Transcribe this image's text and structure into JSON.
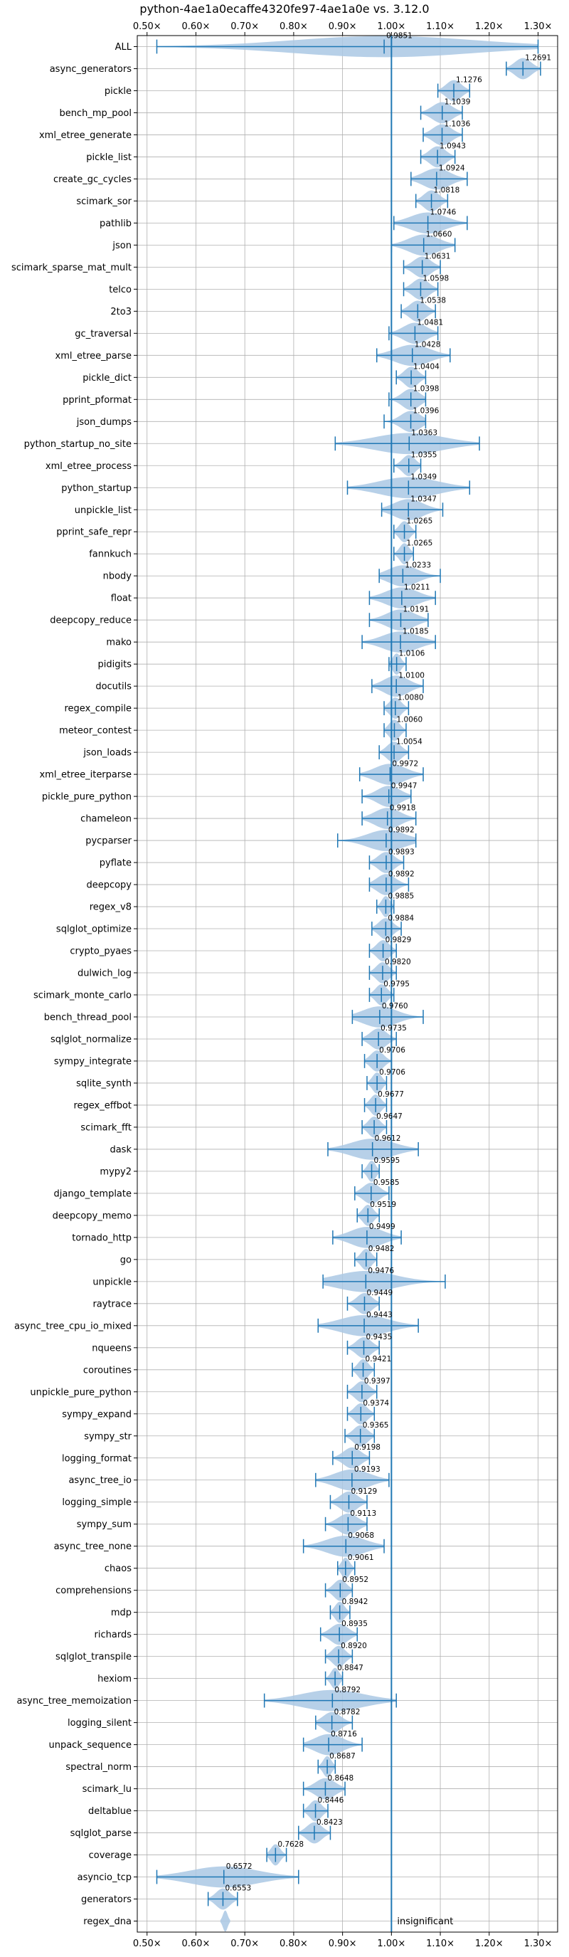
{
  "chart_data": {
    "type": "violin",
    "title": "python-4ae1a0ecaffe4320fe97-4ae1a0e vs. 3.12.0",
    "xlim": [
      0.48,
      1.34
    ],
    "xticks": [
      0.5,
      0.6,
      0.7,
      0.8,
      0.9,
      1.0,
      1.1,
      1.2,
      1.3
    ],
    "xtick_labels": [
      "0.50×",
      "0.60×",
      "0.70×",
      "0.80×",
      "0.90×",
      "1.00×",
      "1.10×",
      "1.20×",
      "1.30×"
    ],
    "grid": true,
    "reference_line": 1.0,
    "annotation": {
      "text": "insignificant",
      "benchmark": "regex_dna"
    },
    "benchmarks": [
      {
        "name": "ALL",
        "value": 0.9851,
        "value_label": "0.9851",
        "min": 0.52,
        "max": 1.3
      },
      {
        "name": "async_generators",
        "value": 1.2691,
        "value_label": "1.2691",
        "min": 1.235,
        "max": 1.305
      },
      {
        "name": "pickle",
        "value": 1.1276,
        "value_label": "1.1276",
        "min": 1.095,
        "max": 1.16
      },
      {
        "name": "bench_mp_pool",
        "value": 1.1039,
        "value_label": "1.1039",
        "min": 1.06,
        "max": 1.145
      },
      {
        "name": "xml_etree_generate",
        "value": 1.1036,
        "value_label": "1.1036",
        "min": 1.065,
        "max": 1.145
      },
      {
        "name": "pickle_list",
        "value": 1.0943,
        "value_label": "1.0943",
        "min": 1.06,
        "max": 1.13
      },
      {
        "name": "create_gc_cycles",
        "value": 1.0924,
        "value_label": "1.0924",
        "min": 1.04,
        "max": 1.155
      },
      {
        "name": "scimark_sor",
        "value": 1.0818,
        "value_label": "1.0818",
        "min": 1.05,
        "max": 1.115
      },
      {
        "name": "pathlib",
        "value": 1.0746,
        "value_label": "1.0746",
        "min": 1.005,
        "max": 1.155
      },
      {
        "name": "json",
        "value": 1.066,
        "value_label": "1.0660",
        "min": 1.0,
        "max": 1.13
      },
      {
        "name": "scimark_sparse_mat_mult",
        "value": 1.0631,
        "value_label": "1.0631",
        "min": 1.025,
        "max": 1.1
      },
      {
        "name": "telco",
        "value": 1.0598,
        "value_label": "1.0598",
        "min": 1.025,
        "max": 1.095
      },
      {
        "name": "2to3",
        "value": 1.0538,
        "value_label": "1.0538",
        "min": 1.02,
        "max": 1.09
      },
      {
        "name": "gc_traversal",
        "value": 1.0481,
        "value_label": "1.0481",
        "min": 0.995,
        "max": 1.095
      },
      {
        "name": "xml_etree_parse",
        "value": 1.0428,
        "value_label": "1.0428",
        "min": 0.97,
        "max": 1.12
      },
      {
        "name": "pickle_dict",
        "value": 1.0404,
        "value_label": "1.0404",
        "min": 1.01,
        "max": 1.07
      },
      {
        "name": "pprint_pformat",
        "value": 1.0398,
        "value_label": "1.0398",
        "min": 0.995,
        "max": 1.07
      },
      {
        "name": "json_dumps",
        "value": 1.0396,
        "value_label": "1.0396",
        "min": 0.985,
        "max": 1.07
      },
      {
        "name": "python_startup_no_site",
        "value": 1.0363,
        "value_label": "1.0363",
        "min": 0.885,
        "max": 1.18
      },
      {
        "name": "xml_etree_process",
        "value": 1.0355,
        "value_label": "1.0355",
        "min": 1.005,
        "max": 1.06
      },
      {
        "name": "python_startup",
        "value": 1.0349,
        "value_label": "1.0349",
        "min": 0.91,
        "max": 1.16
      },
      {
        "name": "unpickle_list",
        "value": 1.0347,
        "value_label": "1.0347",
        "min": 0.98,
        "max": 1.105
      },
      {
        "name": "pprint_safe_repr",
        "value": 1.0265,
        "value_label": "1.0265",
        "min": 1.005,
        "max": 1.05
      },
      {
        "name": "fannkuch",
        "value": 1.0265,
        "value_label": "1.0265",
        "min": 1.005,
        "max": 1.045
      },
      {
        "name": "nbody",
        "value": 1.0233,
        "value_label": "1.0233",
        "min": 0.975,
        "max": 1.1
      },
      {
        "name": "float",
        "value": 1.0211,
        "value_label": "1.0211",
        "min": 0.955,
        "max": 1.09
      },
      {
        "name": "deepcopy_reduce",
        "value": 1.0191,
        "value_label": "1.0191",
        "min": 0.955,
        "max": 1.075
      },
      {
        "name": "mako",
        "value": 1.0185,
        "value_label": "1.0185",
        "min": 0.94,
        "max": 1.09
      },
      {
        "name": "pidigits",
        "value": 1.0106,
        "value_label": "1.0106",
        "min": 0.995,
        "max": 1.03
      },
      {
        "name": "docutils",
        "value": 1.01,
        "value_label": "1.0100",
        "min": 0.96,
        "max": 1.065
      },
      {
        "name": "regex_compile",
        "value": 1.008,
        "value_label": "1.0080",
        "min": 0.985,
        "max": 1.035
      },
      {
        "name": "meteor_contest",
        "value": 1.006,
        "value_label": "1.0060",
        "min": 0.985,
        "max": 1.03
      },
      {
        "name": "json_loads",
        "value": 1.0054,
        "value_label": "1.0054",
        "min": 0.975,
        "max": 1.035
      },
      {
        "name": "xml_etree_iterparse",
        "value": 0.9972,
        "value_label": "0.9972",
        "min": 0.935,
        "max": 1.065
      },
      {
        "name": "pickle_pure_python",
        "value": 0.9947,
        "value_label": "0.9947",
        "min": 0.94,
        "max": 1.04
      },
      {
        "name": "chameleon",
        "value": 0.9918,
        "value_label": "0.9918",
        "min": 0.94,
        "max": 1.05
      },
      {
        "name": "pycparser",
        "value": 0.9892,
        "value_label": "0.9892",
        "min": 0.89,
        "max": 1.05
      },
      {
        "name": "pyflate",
        "value": 0.9893,
        "value_label": "0.9893",
        "min": 0.955,
        "max": 1.025
      },
      {
        "name": "deepcopy",
        "value": 0.9892,
        "value_label": "0.9892",
        "min": 0.955,
        "max": 1.035
      },
      {
        "name": "regex_v8",
        "value": 0.9885,
        "value_label": "0.9885",
        "min": 0.97,
        "max": 1.005
      },
      {
        "name": "sqlglot_optimize",
        "value": 0.9884,
        "value_label": "0.9884",
        "min": 0.96,
        "max": 1.02
      },
      {
        "name": "crypto_pyaes",
        "value": 0.9829,
        "value_label": "0.9829",
        "min": 0.955,
        "max": 1.01
      },
      {
        "name": "dulwich_log",
        "value": 0.982,
        "value_label": "0.9820",
        "min": 0.955,
        "max": 1.01
      },
      {
        "name": "scimark_monte_carlo",
        "value": 0.9795,
        "value_label": "0.9795",
        "min": 0.955,
        "max": 1.005
      },
      {
        "name": "bench_thread_pool",
        "value": 0.976,
        "value_label": "0.9760",
        "min": 0.92,
        "max": 1.065
      },
      {
        "name": "sqlglot_normalize",
        "value": 0.9735,
        "value_label": "0.9735",
        "min": 0.94,
        "max": 1.01
      },
      {
        "name": "sympy_integrate",
        "value": 0.9706,
        "value_label": "0.9706",
        "min": 0.945,
        "max": 1.0
      },
      {
        "name": "sqlite_synth",
        "value": 0.9706,
        "value_label": "0.9706",
        "min": 0.95,
        "max": 0.99
      },
      {
        "name": "regex_effbot",
        "value": 0.9677,
        "value_label": "0.9677",
        "min": 0.945,
        "max": 0.99
      },
      {
        "name": "scimark_fft",
        "value": 0.9647,
        "value_label": "0.9647",
        "min": 0.94,
        "max": 0.99
      },
      {
        "name": "dask",
        "value": 0.9612,
        "value_label": "0.9612",
        "min": 0.87,
        "max": 1.055
      },
      {
        "name": "mypy2",
        "value": 0.9595,
        "value_label": "0.9595",
        "min": 0.94,
        "max": 0.975
      },
      {
        "name": "django_template",
        "value": 0.9585,
        "value_label": "0.9585",
        "min": 0.925,
        "max": 0.995
      },
      {
        "name": "deepcopy_memo",
        "value": 0.9519,
        "value_label": "0.9519",
        "min": 0.93,
        "max": 0.975
      },
      {
        "name": "tornado_http",
        "value": 0.9499,
        "value_label": "0.9499",
        "min": 0.88,
        "max": 1.02
      },
      {
        "name": "go",
        "value": 0.9482,
        "value_label": "0.9482",
        "min": 0.925,
        "max": 0.97
      },
      {
        "name": "unpickle",
        "value": 0.9476,
        "value_label": "0.9476",
        "min": 0.86,
        "max": 1.11
      },
      {
        "name": "raytrace",
        "value": 0.9449,
        "value_label": "0.9449",
        "min": 0.91,
        "max": 0.975
      },
      {
        "name": "async_tree_cpu_io_mixed",
        "value": 0.9443,
        "value_label": "0.9443",
        "min": 0.85,
        "max": 1.055
      },
      {
        "name": "nqueens",
        "value": 0.9435,
        "value_label": "0.9435",
        "min": 0.91,
        "max": 0.975
      },
      {
        "name": "coroutines",
        "value": 0.9421,
        "value_label": "0.9421",
        "min": 0.92,
        "max": 0.965
      },
      {
        "name": "unpickle_pure_python",
        "value": 0.9397,
        "value_label": "0.9397",
        "min": 0.91,
        "max": 0.97
      },
      {
        "name": "sympy_expand",
        "value": 0.9374,
        "value_label": "0.9374",
        "min": 0.91,
        "max": 0.965
      },
      {
        "name": "sympy_str",
        "value": 0.9365,
        "value_label": "0.9365",
        "min": 0.905,
        "max": 0.965
      },
      {
        "name": "logging_format",
        "value": 0.9198,
        "value_label": "0.9198",
        "min": 0.88,
        "max": 0.955
      },
      {
        "name": "async_tree_io",
        "value": 0.9193,
        "value_label": "0.9193",
        "min": 0.845,
        "max": 0.995
      },
      {
        "name": "logging_simple",
        "value": 0.9129,
        "value_label": "0.9129",
        "min": 0.875,
        "max": 0.95
      },
      {
        "name": "sympy_sum",
        "value": 0.9113,
        "value_label": "0.9113",
        "min": 0.865,
        "max": 0.95
      },
      {
        "name": "async_tree_none",
        "value": 0.9068,
        "value_label": "0.9068",
        "min": 0.82,
        "max": 0.985
      },
      {
        "name": "chaos",
        "value": 0.9061,
        "value_label": "0.9061",
        "min": 0.89,
        "max": 0.925
      },
      {
        "name": "comprehensions",
        "value": 0.8952,
        "value_label": "0.8952",
        "min": 0.865,
        "max": 0.92
      },
      {
        "name": "mdp",
        "value": 0.8942,
        "value_label": "0.8942",
        "min": 0.875,
        "max": 0.915
      },
      {
        "name": "richards",
        "value": 0.8935,
        "value_label": "0.8935",
        "min": 0.855,
        "max": 0.93
      },
      {
        "name": "sqlglot_transpile",
        "value": 0.892,
        "value_label": "0.8920",
        "min": 0.865,
        "max": 0.92
      },
      {
        "name": "hexiom",
        "value": 0.8847,
        "value_label": "0.8847",
        "min": 0.865,
        "max": 0.9
      },
      {
        "name": "async_tree_memoization",
        "value": 0.8792,
        "value_label": "0.8792",
        "min": 0.74,
        "max": 1.01
      },
      {
        "name": "logging_silent",
        "value": 0.8782,
        "value_label": "0.8782",
        "min": 0.845,
        "max": 0.92
      },
      {
        "name": "unpack_sequence",
        "value": 0.8716,
        "value_label": "0.8716",
        "min": 0.82,
        "max": 0.94
      },
      {
        "name": "spectral_norm",
        "value": 0.8687,
        "value_label": "0.8687",
        "min": 0.85,
        "max": 0.885
      },
      {
        "name": "scimark_lu",
        "value": 0.8648,
        "value_label": "0.8648",
        "min": 0.82,
        "max": 0.905
      },
      {
        "name": "deltablue",
        "value": 0.8446,
        "value_label": "0.8446",
        "min": 0.82,
        "max": 0.87
      },
      {
        "name": "sqlglot_parse",
        "value": 0.8423,
        "value_label": "0.8423",
        "min": 0.81,
        "max": 0.875
      },
      {
        "name": "coverage",
        "value": 0.7628,
        "value_label": "0.7628",
        "min": 0.745,
        "max": 0.785
      },
      {
        "name": "asyncio_tcp",
        "value": 0.6572,
        "value_label": "0.6572",
        "min": 0.52,
        "max": 0.81
      },
      {
        "name": "generators",
        "value": 0.6553,
        "value_label": "0.6553",
        "min": 0.625,
        "max": 0.685
      },
      {
        "name": "regex_dna",
        "value": 0.66,
        "value_label": "",
        "min": 0.65,
        "max": 0.67,
        "no_stats": true
      }
    ],
    "colors": {
      "line": "#1f77b4",
      "fill": "#aac8e4",
      "grid": "#b0b0b0"
    }
  }
}
